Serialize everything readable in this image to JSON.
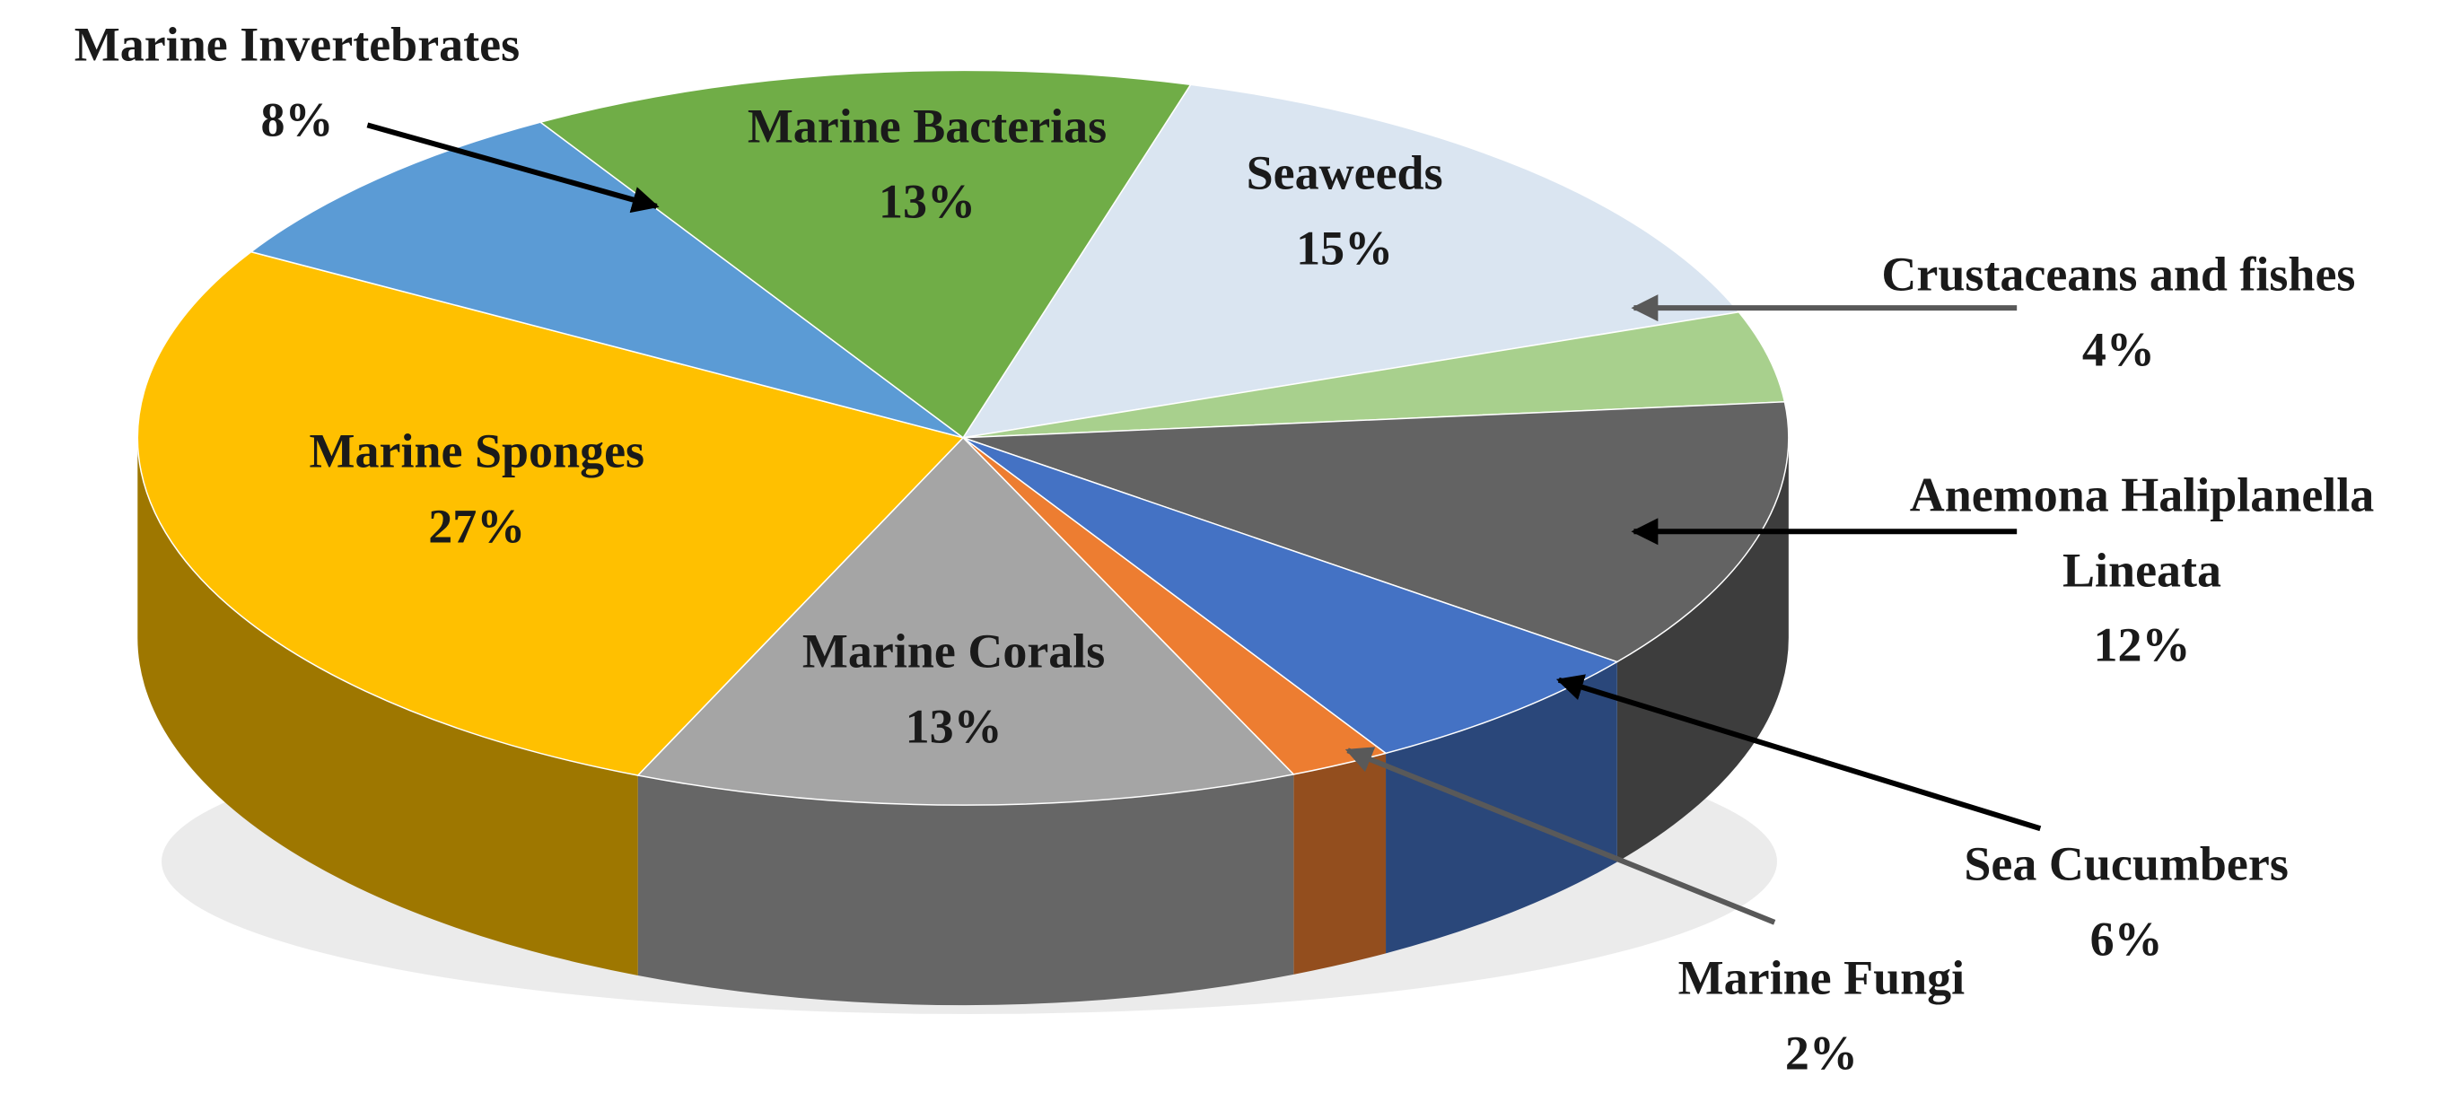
{
  "chart_data": {
    "type": "pie3d",
    "categories": [
      "Seaweeds",
      "Crustaceans and fishes",
      "Anemona Haliplanella Lineata",
      "Sea Cucumbers",
      "Marine Fungi",
      "Marine Corals",
      "Marine Sponges",
      "Marine Invertebrates",
      "Marine Bacterias"
    ],
    "values": [
      15,
      4,
      12,
      6,
      2,
      13,
      27,
      8,
      13
    ],
    "value_labels": [
      "15%",
      "4%",
      "12%",
      "6%",
      "2%",
      "13%",
      "27%",
      "8%",
      "13%"
    ],
    "colors": [
      "#dae5f1",
      "#a8d08d",
      "#636363",
      "#4472c4",
      "#ed7d31",
      "#a5a5a5",
      "#ffc000",
      "#5b9bd5",
      "#70ad47"
    ]
  }
}
